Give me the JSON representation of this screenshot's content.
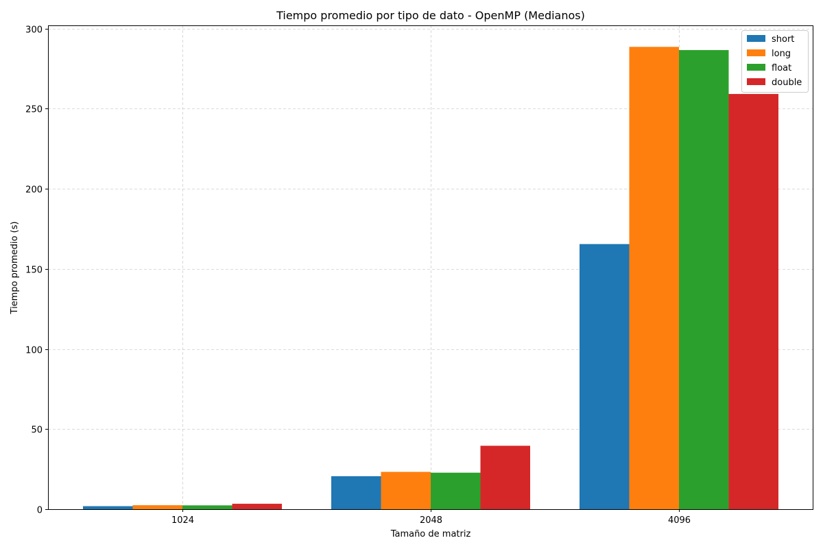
{
  "chart_data": {
    "type": "bar",
    "title": "Tiempo promedio por tipo de dato - OpenMP (Medianos)",
    "xlabel": "Tamaño de matriz",
    "ylabel": "Tiempo promedio (s)",
    "categories": [
      "1024",
      "2048",
      "4096"
    ],
    "ylim": [
      0,
      302
    ],
    "yticks": [
      0,
      50,
      100,
      150,
      200,
      250,
      300
    ],
    "grid": true,
    "legend_position": "top-right",
    "series": [
      {
        "name": "short",
        "color": "#1f77b4",
        "values": [
          1.9,
          20.6,
          165.5
        ]
      },
      {
        "name": "long",
        "color": "#ff7f0e",
        "values": [
          2.5,
          23.3,
          288.6
        ]
      },
      {
        "name": "float",
        "color": "#2ca02c",
        "values": [
          2.4,
          22.8,
          286.6
        ]
      },
      {
        "name": "double",
        "color": "#d62728",
        "values": [
          3.4,
          39.6,
          259.2
        ]
      }
    ]
  }
}
